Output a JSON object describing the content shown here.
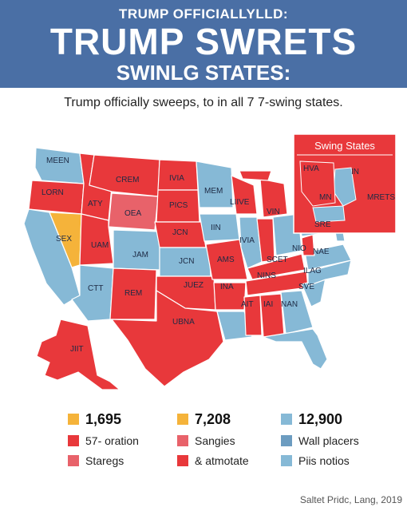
{
  "header": {
    "kicker": "TRUMP OFFICIALLYLLD:",
    "headline": "TRUMP SWRETS",
    "subhead": "SWINLG STATES:"
  },
  "caption": "Trump officially sweeps, to in all 7 7-swing states.",
  "inset": {
    "title": "Swing States",
    "labels": [
      "HVA",
      "IN",
      "MN",
      "MRETS",
      "SRE"
    ]
  },
  "colors": {
    "header_bg": "#4a6fa5",
    "red": "#e8383b",
    "blue": "#86b9d6",
    "orange": "#f5b33a",
    "salmon": "#e8626a",
    "steel": "#6c9cc0"
  },
  "map_labels": [
    "MEEN",
    "CREM",
    "IVIA",
    "MEM",
    "LORN",
    "ATY",
    "OEA",
    "PICS",
    "LIIVE",
    "VIN",
    "SEX",
    "UAM",
    "JCN",
    "IIN",
    "IVIA",
    "JAM",
    "JCN",
    "AMS",
    "SCET",
    "NIO",
    "NAE",
    "CTT",
    "REM",
    "JUEZ",
    "INA",
    "NINS",
    "AIT",
    "IAI",
    "ILAG",
    "SVE",
    "NAN",
    "UBNA",
    "JIIT"
  ],
  "legend": [
    {
      "label": "1,695",
      "color": "#f5b33a",
      "bold": true
    },
    {
      "label": "7,208",
      "color": "#f5b33a",
      "bold": true
    },
    {
      "label": "12,900",
      "color": "#86b9d6",
      "bold": true
    },
    {
      "label": "57- oration",
      "color": "#e8383b",
      "bold": false
    },
    {
      "label": "Sangies",
      "color": "#e8626a",
      "bold": false
    },
    {
      "label": "Wall placers",
      "color": "#6c9cc0",
      "bold": false
    },
    {
      "label": "Staregs",
      "color": "#e8626a",
      "bold": false
    },
    {
      "label": "& atmotate",
      "color": "#e8383b",
      "bold": false
    },
    {
      "label": "Piis notios",
      "color": "#86b9d6",
      "bold": false
    }
  ],
  "credit": "Saltet Pridc, Lang, 2019"
}
